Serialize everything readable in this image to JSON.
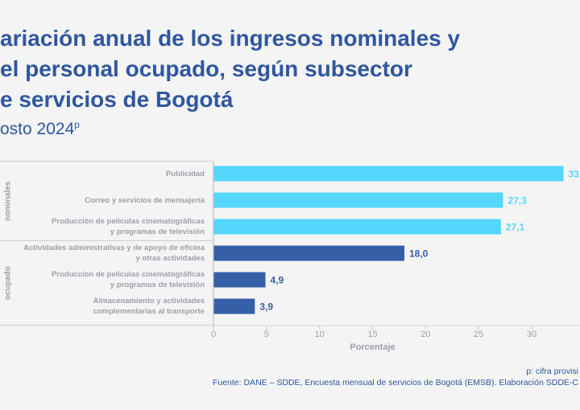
{
  "title_lines": [
    "ariación anual de los ingresos nominales y",
    "el personal ocupado, según subsector",
    "e servicios de Bogotá"
  ],
  "subtitle": "osto 2024",
  "subtitle_sup": "p",
  "groups": [
    {
      "label": "nominales"
    },
    {
      "label": "ocupado"
    }
  ],
  "chart_data": {
    "type": "bar",
    "orientation": "horizontal",
    "categories": [
      "Publicidad",
      "Correo y servicios de mensajería",
      "Producción de películas cinematográficas y programas de televisión",
      "Actividades administrativas y de apoyo de oficina y otras actividades",
      "Produccion de películas cinematográficas y programas de televisión",
      "Almacenamiento y actividades complementarias al transporte"
    ],
    "category_lines": [
      [
        "Publicidad"
      ],
      [
        "Correo y servicios de mensajería"
      ],
      [
        "Producción de películas cinematográficas",
        "y programas de televisión"
      ],
      [
        "Actividades administrativas y de apoyo de oficina",
        "y otras actividades"
      ],
      [
        "Produccion de películas cinematográficas",
        "y programas de televisión"
      ],
      [
        "Almacenamiento y actividades",
        "complementarias al transporte"
      ]
    ],
    "values": [
      33.0,
      27.3,
      27.1,
      18.0,
      4.9,
      3.9
    ],
    "data_labels": [
      "33,",
      "27,3",
      "27,1",
      "18,0",
      "4,9",
      "3,9"
    ],
    "bar_groups": [
      "nominales",
      "nominales",
      "nominales",
      "ocupado",
      "ocupado",
      "ocupado"
    ],
    "colors": {
      "nominales": "#55d6fd",
      "ocupado": "#355fa7"
    },
    "xlabel": "Porcentaje",
    "xlim": [
      0,
      35
    ],
    "xticks": [
      "0",
      "5",
      "10",
      "15",
      "20",
      "25",
      "30"
    ],
    "grid": false
  },
  "footnote": "p: cifra provisi",
  "source": "Fuente: DANE – SDDE, Encuesta mensual de servicios de Bogotá (EMSB). Elaboración SDDE-C"
}
